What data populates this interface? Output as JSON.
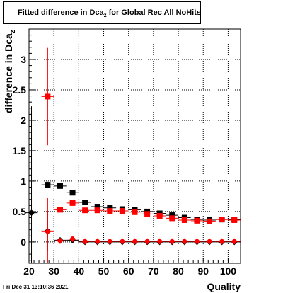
{
  "title": {
    "prefix": "Fitted difference in Dca",
    "subscript": "z",
    "suffix": "for Global Rec All NoHits"
  },
  "timestamp": "Fri Dec 31 13:10:36 2021",
  "chart_data": {
    "type": "scatter",
    "xlabel": "Quality",
    "ylabel": "difference in Dca",
    "ylabel_subscript": "z",
    "xlim": [
      20,
      105
    ],
    "ylim": [
      -0.35,
      3.5
    ],
    "xticks": [
      20,
      30,
      40,
      50,
      60,
      70,
      80,
      90,
      100
    ],
    "yticks": [
      0,
      0.5,
      1,
      1.5,
      2,
      2.5,
      3
    ],
    "ytick_labels": [
      "0",
      "0.5",
      "1",
      "1.5",
      "2",
      "2.5",
      "3"
    ],
    "grid": true,
    "series": [
      {
        "color": "#000000",
        "marker": "square",
        "x": [
          27.5,
          32.5,
          37.5,
          42.5,
          47.5,
          52.5,
          57.5,
          62.5,
          67.5,
          72.5,
          77.5,
          82.5,
          87.5,
          92.5,
          97.5,
          102.5
        ],
        "y": [
          0.94,
          0.92,
          0.81,
          0.65,
          0.58,
          0.56,
          0.54,
          0.53,
          0.5,
          0.47,
          0.44,
          0.4,
          0.37,
          0.36,
          0.37,
          0.37
        ],
        "yerr": [
          0.05,
          0.03,
          0.02,
          0.02,
          0.02,
          0.02,
          0.02,
          0.02,
          0.02,
          0.02,
          0.02,
          0.02,
          0.02,
          0.02,
          0.02,
          0.02
        ]
      },
      {
        "color": "#ff0000",
        "marker": "square",
        "x": [
          27.5,
          32.5,
          37.5,
          42.5,
          47.5,
          52.5,
          57.5,
          62.5,
          67.5,
          72.5,
          77.5,
          82.5,
          87.5,
          92.5,
          97.5,
          102.5
        ],
        "y": [
          2.39,
          0.53,
          0.64,
          0.52,
          0.52,
          0.51,
          0.51,
          0.49,
          0.46,
          0.43,
          0.39,
          0.36,
          0.35,
          0.34,
          0.37,
          0.36
        ],
        "yerr": [
          0.8,
          0.03,
          0.03,
          0.02,
          0.02,
          0.02,
          0.02,
          0.02,
          0.02,
          0.02,
          0.02,
          0.02,
          0.02,
          0.02,
          0.02,
          0.02
        ]
      },
      {
        "color": "#000000",
        "marker": "diamond",
        "x": [
          21,
          27.5,
          32.5,
          37.5,
          42.5,
          47.5,
          52.5,
          57.5,
          62.5,
          67.5,
          72.5,
          77.5,
          82.5,
          87.5,
          92.5,
          97.5,
          102.5
        ],
        "y": [
          0.48,
          0.18,
          0.03,
          0.03,
          0.0,
          0.0,
          0.0,
          0.0,
          0.0,
          0.0,
          0.0,
          0.0,
          0.0,
          0.0,
          0.0,
          0.0,
          0.0
        ],
        "yerr": [
          1.75,
          0.33,
          0.02,
          0.02,
          0.02,
          0.02,
          0.02,
          0.02,
          0.02,
          0.02,
          0.02,
          0.02,
          0.02,
          0.02,
          0.02,
          0.02,
          0.02
        ]
      },
      {
        "color": "#ff0000",
        "marker": "diamond",
        "x": [
          27.5,
          32.5,
          37.5,
          42.5,
          47.5,
          52.5,
          57.5,
          62.5,
          67.5,
          72.5,
          77.5,
          82.5,
          87.5,
          92.5,
          97.5,
          102.5
        ],
        "y": [
          0.17,
          0.02,
          0.05,
          0.01,
          0.01,
          0.01,
          0.01,
          0.01,
          0.01,
          0.01,
          0.01,
          0.01,
          0.01,
          0.01,
          0.01,
          0.01
        ],
        "yerr": [
          0.55,
          0.02,
          0.02,
          0.02,
          0.02,
          0.02,
          0.02,
          0.02,
          0.02,
          0.02,
          0.02,
          0.02,
          0.02,
          0.02,
          0.02,
          0.02
        ]
      }
    ]
  }
}
